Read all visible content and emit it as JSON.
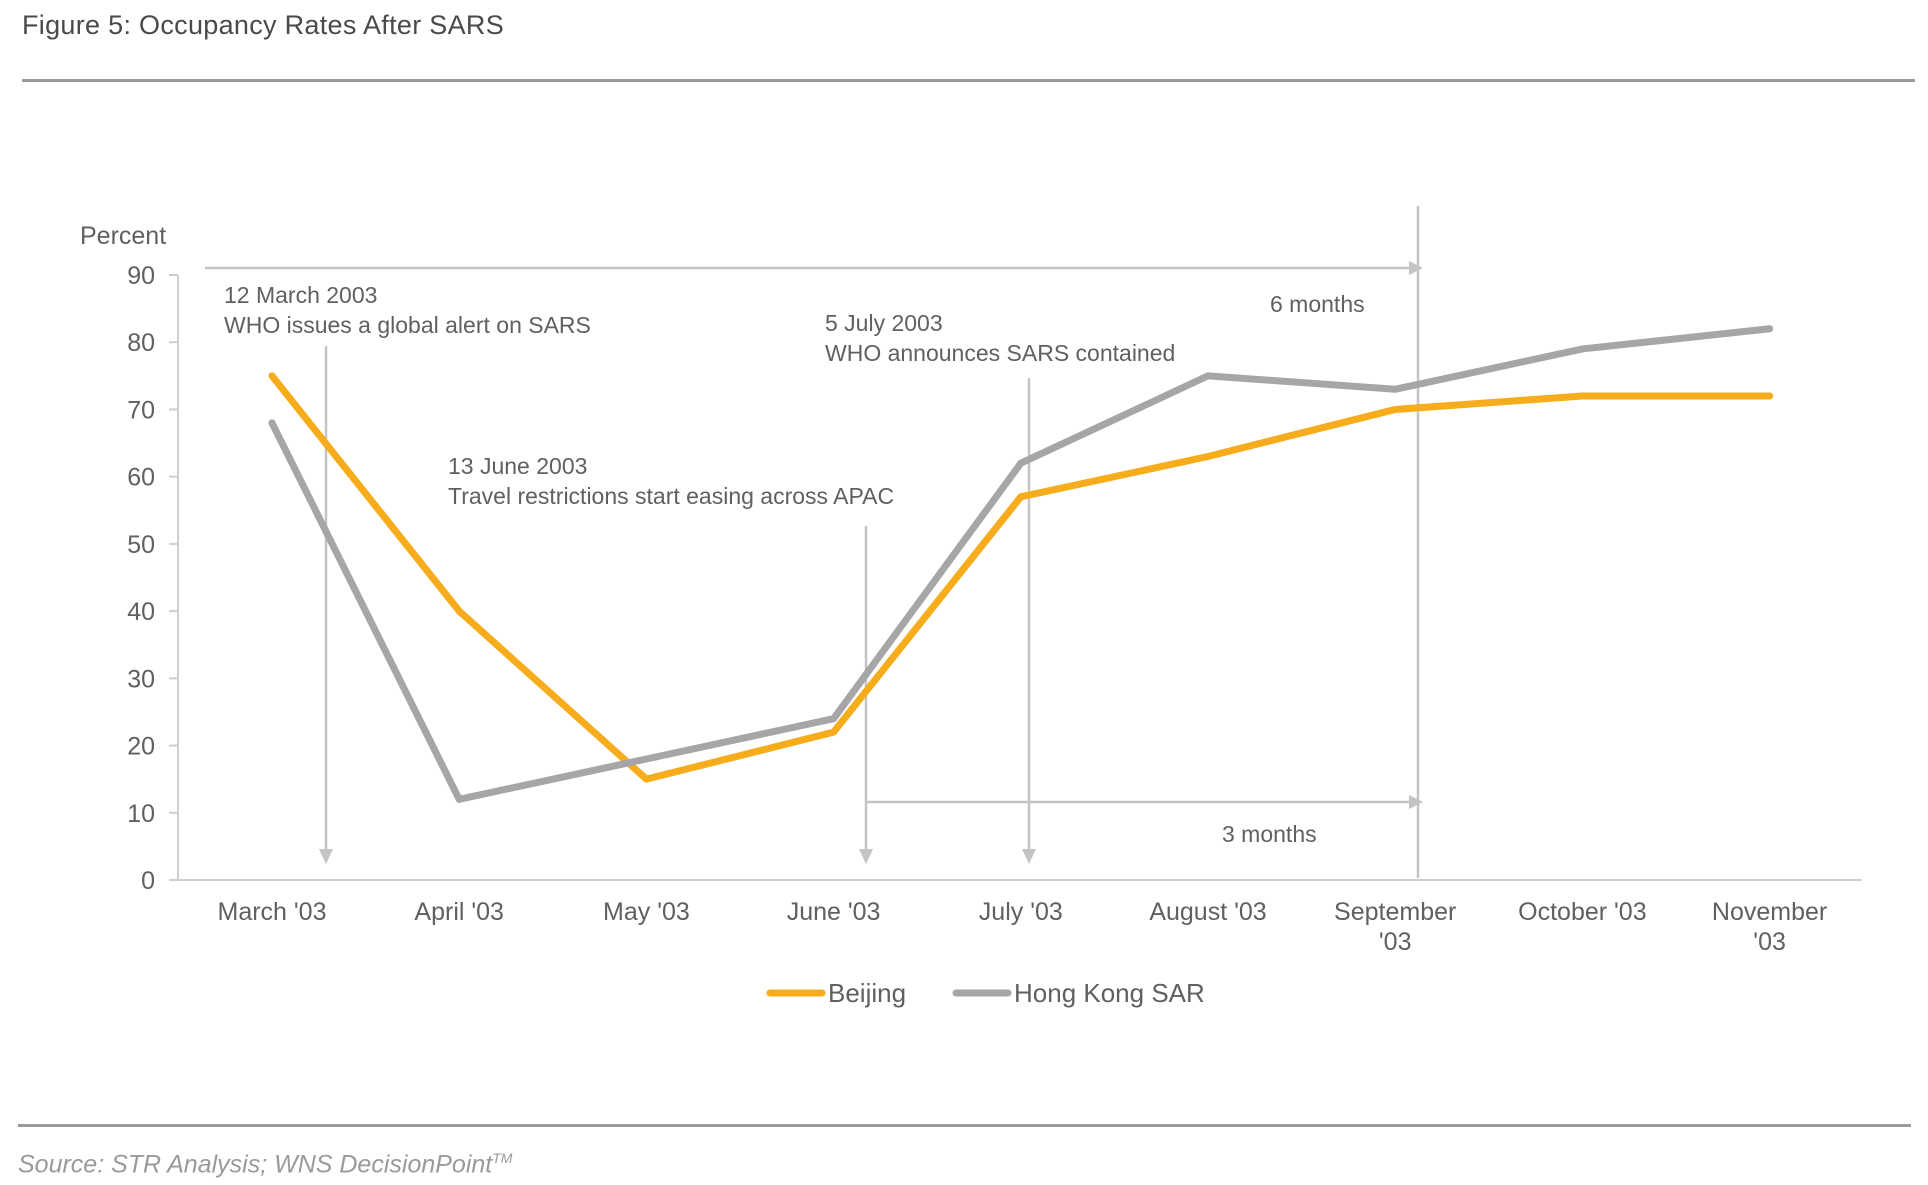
{
  "figure": {
    "title": "Figure 5: Occupancy Rates After SARS",
    "source": "Source: STR Analysis; WNS DecisionPoint",
    "source_mark": "TM"
  },
  "chart_data": {
    "type": "line",
    "title": "Figure 5: Occupancy Rates After SARS",
    "ylabel": "Percent",
    "xlabel": "",
    "ylim": [
      0,
      90
    ],
    "yticks": [
      0,
      10,
      20,
      30,
      40,
      50,
      60,
      70,
      80,
      90
    ],
    "categories": [
      "March '03",
      "April '03",
      "May '03",
      "June '03",
      "July '03",
      "August '03",
      "September '03",
      "October '03",
      "November '03"
    ],
    "category_lines": [
      [
        "March '03"
      ],
      [
        "April '03"
      ],
      [
        "May '03"
      ],
      [
        "June '03"
      ],
      [
        "July '03"
      ],
      [
        "August '03"
      ],
      [
        "September",
        "'03"
      ],
      [
        "October '03"
      ],
      [
        "November",
        "'03"
      ]
    ],
    "series": [
      {
        "name": "Beijing",
        "color": "#f7ac1b",
        "values": [
          75,
          40,
          15,
          22,
          57,
          63,
          70,
          72,
          72
        ]
      },
      {
        "name": "Hong Kong SAR",
        "color": "#a6a6a8",
        "values": [
          68,
          12,
          18,
          24,
          62,
          75,
          73,
          79,
          82
        ]
      }
    ],
    "legend_position": "bottom-center",
    "grid": false,
    "annotations": [
      {
        "date": "12 March 2003",
        "text": "WHO issues a global alert on SARS"
      },
      {
        "date": "13 June 2003",
        "text": "Travel restrictions start easing across APAC"
      },
      {
        "date": "5 July 2003",
        "text": "WHO announces SARS contained"
      },
      {
        "text": "6 months"
      },
      {
        "text": "3 months"
      }
    ]
  }
}
